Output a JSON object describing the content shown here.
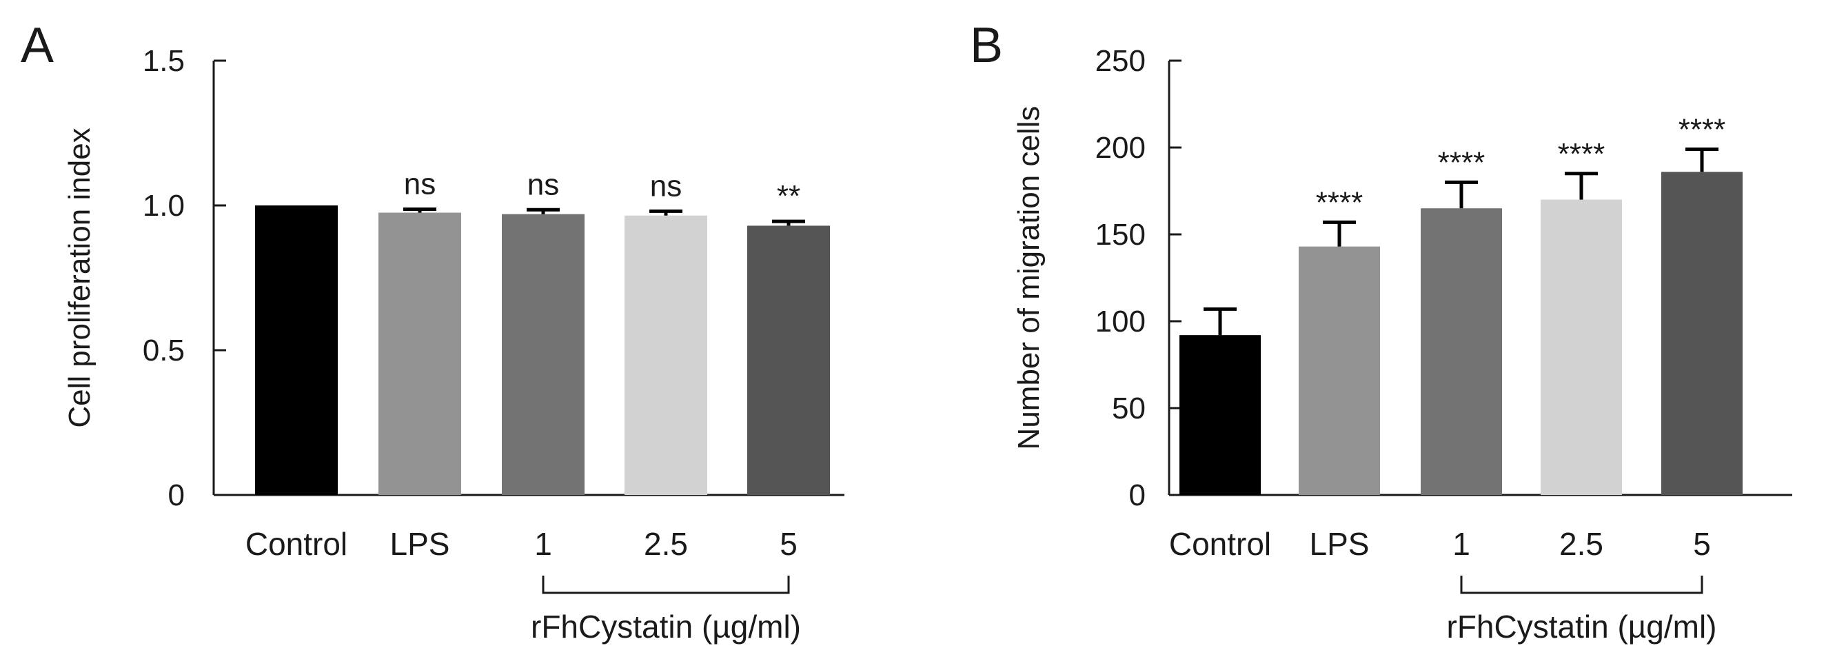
{
  "chart_data": [
    {
      "type": "bar",
      "panel_label": "A",
      "ylabel": "Cell proliferation index",
      "ylim": [
        0,
        1.5
      ],
      "yticks": [
        0,
        0.5,
        1.0,
        1.5
      ],
      "ytick_labels": [
        "0",
        "0.5",
        "1.0",
        "1.5"
      ],
      "categories": [
        "Control",
        "LPS",
        "1",
        "2.5",
        "5"
      ],
      "values": [
        1.0,
        0.975,
        0.97,
        0.965,
        0.93
      ],
      "errors": [
        0.0,
        0.012,
        0.015,
        0.015,
        0.015
      ],
      "significance": [
        "",
        "ns",
        "ns",
        "ns",
        "**"
      ],
      "colors": [
        "#000000",
        "#939393",
        "#737373",
        "#d2d2d2",
        "#555555"
      ],
      "group_label": "rFhCystatin (µg/ml)",
      "group_range": [
        2,
        4
      ],
      "grid": false
    },
    {
      "type": "bar",
      "panel_label": "B",
      "ylabel": "Number of migration cells",
      "ylim": [
        0,
        250
      ],
      "yticks": [
        0,
        50,
        100,
        150,
        200,
        250
      ],
      "ytick_labels": [
        "0",
        "50",
        "100",
        "150",
        "200",
        "250"
      ],
      "categories": [
        "Control",
        "LPS",
        "1",
        "2.5",
        "5"
      ],
      "values": [
        92,
        143,
        165,
        170,
        186
      ],
      "errors": [
        15,
        14,
        15,
        15,
        13
      ],
      "significance": [
        "",
        "****",
        "****",
        "****",
        "****"
      ],
      "colors": [
        "#000000",
        "#939393",
        "#737373",
        "#d2d2d2",
        "#555555"
      ],
      "group_label": "rFhCystatin (µg/ml)",
      "group_range": [
        2,
        4
      ],
      "grid": false
    }
  ]
}
